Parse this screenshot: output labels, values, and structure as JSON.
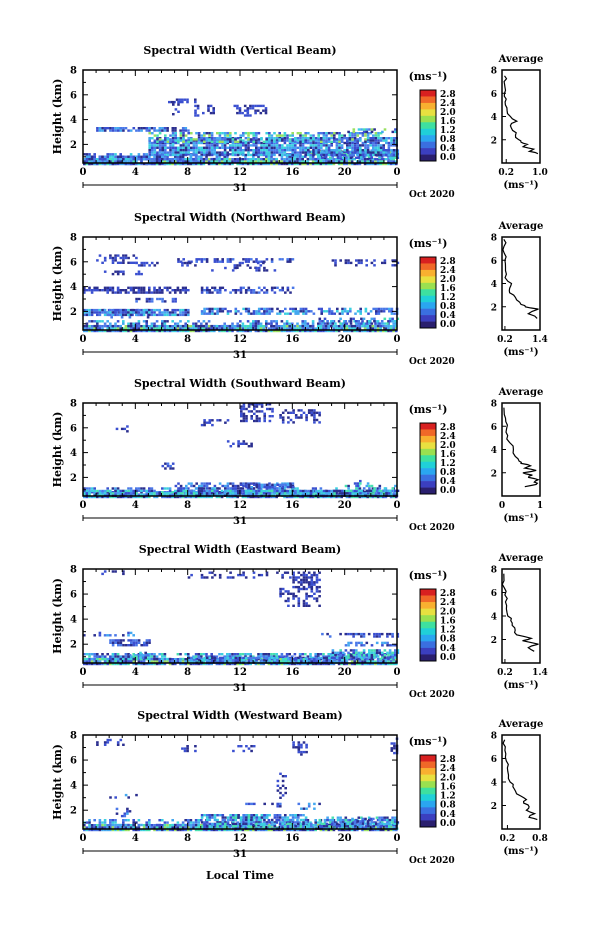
{
  "figure": {
    "xlabel": "Local Time",
    "date_label": "Oct 2020",
    "day_label": "31"
  },
  "colorbar": {
    "unit_label": "(ms⁻¹)",
    "ticks": [
      "2.8",
      "2.4",
      "2.0",
      "1.6",
      "1.2",
      "0.8",
      "0.4",
      "0.0"
    ],
    "colors": [
      "#2a1f6e",
      "#3b3fbf",
      "#3a6fe0",
      "#2aa6f0",
      "#20d0d8",
      "#3ee0a0",
      "#9ae050",
      "#e8e040",
      "#f8b030",
      "#f06828",
      "#d82020"
    ]
  },
  "average_title": "Average",
  "average_xlabel": "(ms⁻¹)",
  "chart_data": [
    {
      "type": "heatmap",
      "title": "Spectral Width (Vertical Beam)",
      "ylabel": "Height (km)",
      "x_ticks": [
        "0",
        "4",
        "8",
        "12",
        "16",
        "20",
        "0"
      ],
      "y_ticks": [
        "8",
        "6",
        "4",
        "2"
      ],
      "xlim": [
        0,
        24
      ],
      "ylim": [
        0.5,
        8
      ],
      "zlim": [
        0,
        2.8
      ],
      "profile": {
        "type": "line",
        "title": "Average",
        "xlim": [
          0.1,
          1.0
        ],
        "x_ticks": [
          "0.2",
          "1.0"
        ],
        "ylim": [
          0,
          8
        ],
        "y_ticks": [
          "8",
          "6",
          "4",
          "2"
        ],
        "heights": [
          0.8,
          1.0,
          1.2,
          1.4,
          1.6,
          1.8,
          2.0,
          2.4,
          2.8,
          3.2,
          3.6,
          4.0,
          4.5,
          5.0,
          5.5,
          6.0,
          6.5,
          7.0,
          7.5
        ],
        "values": [
          0.95,
          0.75,
          0.85,
          0.6,
          0.7,
          0.55,
          0.5,
          0.42,
          0.35,
          0.3,
          0.45,
          0.3,
          0.22,
          0.18,
          0.2,
          0.16,
          0.17,
          0.15,
          0.16
        ]
      }
    },
    {
      "type": "heatmap",
      "title": "Spectral Width (Northward Beam)",
      "ylabel": "Height (km)",
      "x_ticks": [
        "0",
        "4",
        "8",
        "12",
        "16",
        "20",
        "0"
      ],
      "y_ticks": [
        "8",
        "6",
        "4",
        "2"
      ],
      "xlim": [
        0,
        24
      ],
      "ylim": [
        0.5,
        8
      ],
      "zlim": [
        0,
        2.8
      ],
      "profile": {
        "type": "line",
        "title": "Average",
        "xlim": [
          0.1,
          1.4
        ],
        "x_ticks": [
          "0.2",
          "1.4"
        ],
        "ylim": [
          0,
          8
        ],
        "y_ticks": [
          "8",
          "6",
          "4",
          "2"
        ],
        "heights": [
          1.0,
          1.4,
          1.8,
          2.0,
          2.2,
          2.6,
          3.0,
          3.4,
          3.8,
          4.2,
          4.8,
          5.4,
          6.0,
          6.6,
          7.2,
          7.8
        ],
        "values": [
          1.3,
          1.0,
          1.35,
          0.9,
          0.75,
          0.6,
          0.5,
          0.35,
          0.4,
          0.3,
          0.25,
          0.22,
          0.2,
          0.18,
          0.17,
          0.16
        ]
      }
    },
    {
      "type": "heatmap",
      "title": "Spectral Width (Southward Beam)",
      "ylabel": "Height (km)",
      "x_ticks": [
        "0",
        "4",
        "8",
        "12",
        "16",
        "20",
        "0"
      ],
      "y_ticks": [
        "8",
        "6",
        "4",
        "2"
      ],
      "xlim": [
        0,
        24
      ],
      "ylim": [
        0.5,
        8
      ],
      "zlim": [
        0,
        2.8
      ],
      "profile": {
        "type": "line",
        "title": "Average",
        "xlim": [
          0,
          1.0
        ],
        "x_ticks": [
          "0",
          "1"
        ],
        "ylim": [
          0,
          8
        ],
        "y_ticks": [
          "8",
          "6",
          "4",
          "2"
        ],
        "heights": [
          0.8,
          1.0,
          1.2,
          1.4,
          1.6,
          1.8,
          2.0,
          2.2,
          2.4,
          2.6,
          2.8,
          3.0,
          3.4,
          4.0,
          4.6,
          5.2,
          5.8,
          6.4,
          7.0,
          7.6
        ],
        "values": [
          0.6,
          0.9,
          0.85,
          0.95,
          0.7,
          0.8,
          0.55,
          0.9,
          0.6,
          0.75,
          0.5,
          0.45,
          0.35,
          0.3,
          0.2,
          0.15,
          0.12,
          0.1,
          0.06,
          0.05
        ]
      }
    },
    {
      "type": "heatmap",
      "title": "Spectral Width (Eastward Beam)",
      "ylabel": "Height (km)",
      "x_ticks": [
        "0",
        "4",
        "8",
        "12",
        "16",
        "20",
        "0"
      ],
      "y_ticks": [
        "8",
        "6",
        "4",
        "2"
      ],
      "xlim": [
        0,
        24
      ],
      "ylim": [
        0.5,
        8
      ],
      "zlim": [
        0,
        2.8
      ],
      "profile": {
        "type": "line",
        "title": "Average",
        "xlim": [
          0.1,
          1.4
        ],
        "x_ticks": [
          "0.2",
          "1.4"
        ],
        "ylim": [
          0,
          8
        ],
        "y_ticks": [
          "8",
          "6",
          "4",
          "2"
        ],
        "heights": [
          1.0,
          1.3,
          1.6,
          1.9,
          2.1,
          2.4,
          2.8,
          3.2,
          3.6,
          4.0,
          4.6,
          5.2,
          5.8,
          6.4,
          7.0,
          7.6
        ],
        "values": [
          1.2,
          1.0,
          1.35,
          0.8,
          1.1,
          0.6,
          0.55,
          0.45,
          0.4,
          0.3,
          0.25,
          0.22,
          0.2,
          0.18,
          0.17,
          0.16
        ]
      }
    },
    {
      "type": "heatmap",
      "title": "Spectral Width (Westward Beam)",
      "ylabel": "Height (km)",
      "x_ticks": [
        "0",
        "4",
        "8",
        "12",
        "16",
        "20",
        "0"
      ],
      "y_ticks": [
        "8",
        "6",
        "4",
        "2"
      ],
      "xlim": [
        0,
        24
      ],
      "ylim": [
        0.5,
        8
      ],
      "zlim": [
        0,
        2.8
      ],
      "profile": {
        "type": "line",
        "title": "Average",
        "xlim": [
          0.1,
          0.8
        ],
        "x_ticks": [
          "0.2",
          "0.8"
        ],
        "ylim": [
          0,
          8
        ],
        "y_ticks": [
          "8",
          "6",
          "4",
          "2"
        ],
        "heights": [
          0.8,
          1.0,
          1.3,
          1.6,
          1.9,
          2.2,
          2.5,
          2.8,
          3.2,
          3.6,
          4.0,
          4.6,
          5.2,
          5.8,
          6.4,
          7.0,
          7.6
        ],
        "values": [
          0.75,
          0.6,
          0.7,
          0.55,
          0.6,
          0.5,
          0.55,
          0.45,
          0.35,
          0.3,
          0.25,
          0.22,
          0.2,
          0.18,
          0.17,
          0.16,
          0.15
        ]
      }
    }
  ]
}
